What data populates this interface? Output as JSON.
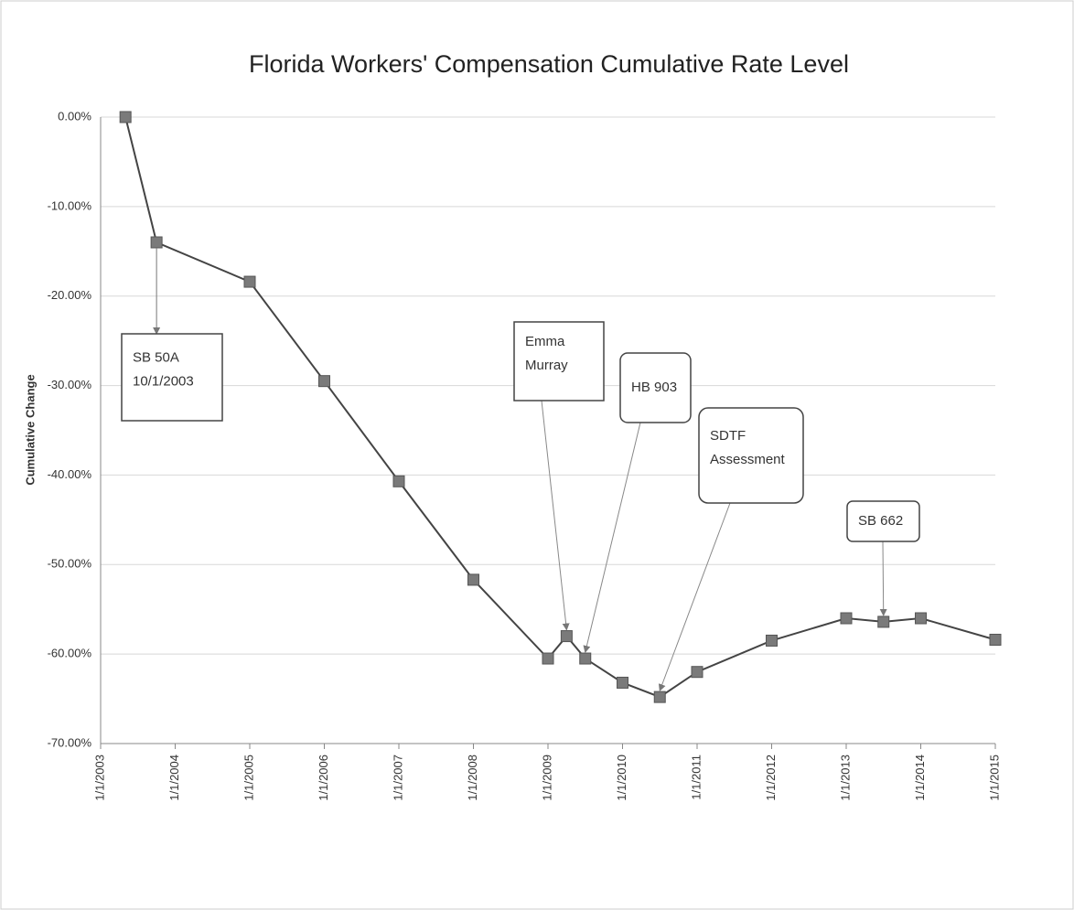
{
  "chart_data": {
    "type": "line",
    "title": "Florida Workers' Compensation Cumulative Rate Level",
    "y_label": "Cumulative Change",
    "x": [
      "5/1/2003",
      "10/1/2003",
      "1/1/2005",
      "1/1/2006",
      "1/1/2007",
      "1/1/2008",
      "1/1/2009",
      "4/1/2009",
      "7/1/2009",
      "1/1/2010",
      "7/1/2010",
      "1/1/2011",
      "1/1/2012",
      "1/1/2013",
      "7/1/2013",
      "1/1/2014",
      "1/1/2015"
    ],
    "series": [
      {
        "name": "Cumulative Change",
        "color": "#444444",
        "values": [
          0,
          -14.0,
          -18.4,
          -29.5,
          -40.7,
          -51.7,
          -60.5,
          -58.0,
          -60.5,
          -63.2,
          -64.8,
          -62.0,
          -58.5,
          -56.0,
          -56.4,
          -56.0,
          -58.4
        ]
      }
    ],
    "xlim": [
      "1/1/2003",
      "1/1/2015"
    ],
    "xticks": [
      "1/1/2003",
      "1/1/2004",
      "1/1/2005",
      "1/1/2006",
      "1/1/2007",
      "1/1/2008",
      "1/1/2009",
      "1/1/2010",
      "1/1/2011",
      "1/1/2012",
      "1/1/2013",
      "1/1/2014",
      "1/1/2015"
    ],
    "ylim": [
      -70,
      0
    ],
    "yticks": [
      {
        "value": 0,
        "label": "0.00%"
      },
      {
        "value": -10,
        "label": "-10.00%"
      },
      {
        "value": -20,
        "label": "-20.00%"
      },
      {
        "value": -30,
        "label": "-30.00%"
      },
      {
        "value": -40,
        "label": "-40.00%"
      },
      {
        "value": -50,
        "label": "-50.00%"
      },
      {
        "value": -60,
        "label": "-60.00%"
      },
      {
        "value": -70,
        "label": "-70.00%"
      }
    ],
    "grid": true,
    "annotations": [
      {
        "lines": [
          "SB 50A",
          "10/1/2003"
        ]
      },
      {
        "lines": [
          "Emma",
          "Murray"
        ]
      },
      {
        "lines": [
          "HB 903"
        ]
      },
      {
        "lines": [
          "SDTF",
          "Assessment"
        ]
      },
      {
        "lines": [
          "SB 662"
        ]
      }
    ]
  }
}
